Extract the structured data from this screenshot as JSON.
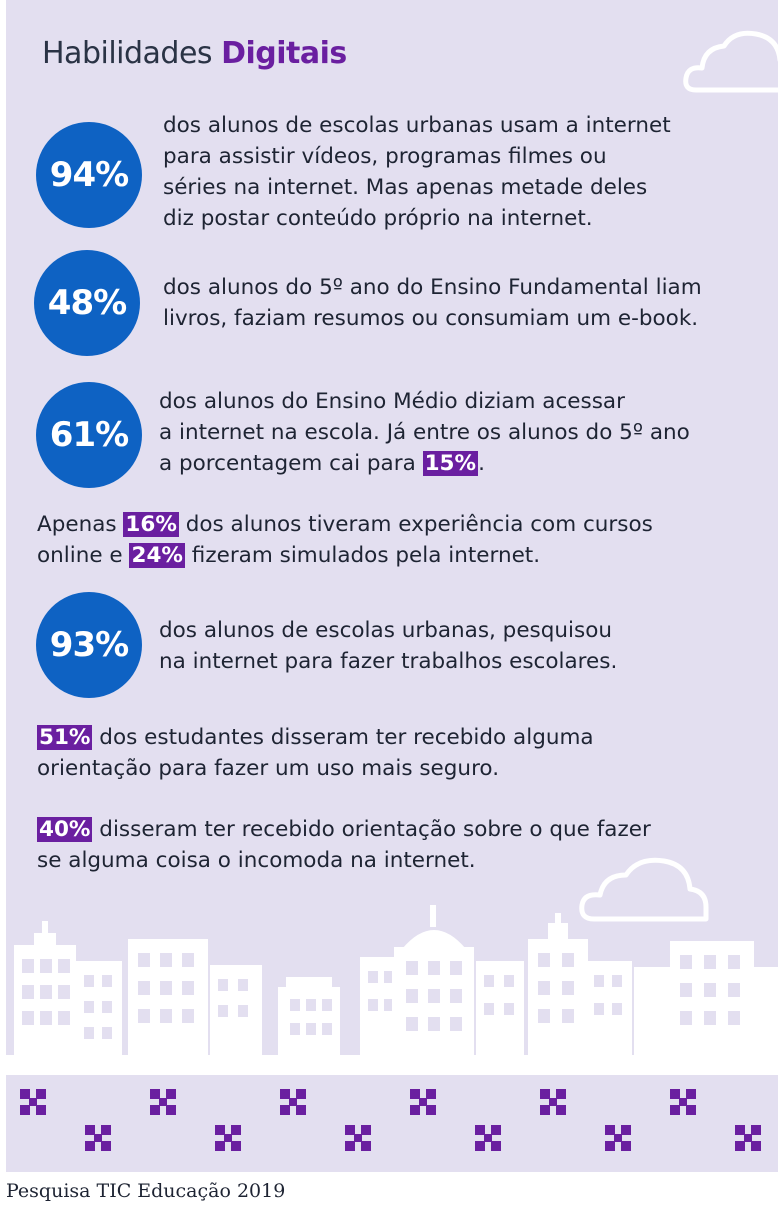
{
  "header": {
    "title_regular": "Habilidades ",
    "title_bold": "Digitais"
  },
  "stats": [
    {
      "value": "94%",
      "lines": [
        "dos alunos de escolas urbanas usam a internet",
        "para assistir vídeos, programas filmes ou",
        "séries na internet. Mas apenas metade deles",
        "diz postar conteúdo próprio na internet."
      ]
    },
    {
      "value": "48%",
      "lines": [
        "dos alunos do 5º ano do Ensino Fundamental liam",
        "livros, faziam resumos ou consumiam um e-book."
      ]
    },
    {
      "value": "61%",
      "lines": [
        "dos alunos do Ensino Médio diziam acessar",
        "a internet na escola. Já entre os alunos do 5º ano"
      ],
      "line3_pre": "a porcentagem cai para ",
      "line3_hl": "15%",
      "line3_post": "."
    },
    {
      "value": "93%",
      "lines": [
        "dos alunos de escolas urbanas, pesquisou",
        "na internet para fazer trabalhos escolares."
      ]
    }
  ],
  "courses": {
    "pre": "Apenas ",
    "hl1": "16%",
    "mid1": " dos alunos tiveram experiência com cursos",
    "pre2": "online e ",
    "hl2": "24%",
    "post2": " fizeram simulados pela internet."
  },
  "orientation": {
    "hl": "51%",
    "line1": " dos estudantes disseram ter recebido alguma",
    "line2": "orientação para fazer um uso mais seguro."
  },
  "discomfort": {
    "hl": "40%",
    "line1": " disseram ter recebido orientação sobre o que fazer",
    "line2": "se alguma coisa o incomoda na internet."
  },
  "footer": {
    "source": "Pesquisa TIC Educação 2019"
  },
  "colors": {
    "badge": "#0e62c3",
    "highlight": "#6a1fa0",
    "background": "#e3dff0",
    "text": "#1e2433"
  },
  "icons": {
    "clouds": "cloud-icon",
    "city": "city-skyline",
    "pattern": "cross-pattern-icon"
  }
}
